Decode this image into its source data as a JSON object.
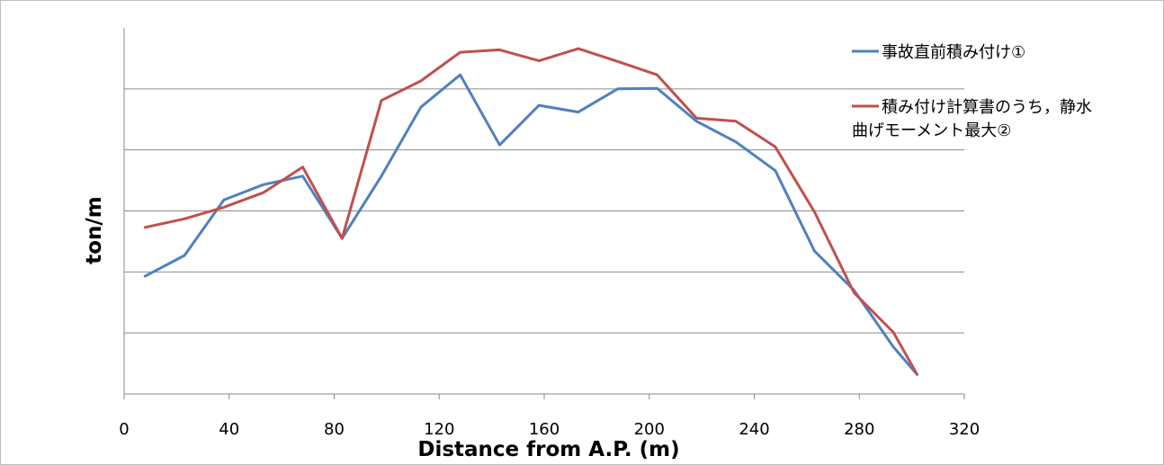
{
  "chart_data": {
    "type": "line",
    "title": "",
    "xlabel": "Distance from A.P. (m)",
    "ylabel": "ton/m",
    "xlim": [
      0,
      320
    ],
    "ylim": [
      0,
      6
    ],
    "x_ticks": [
      0,
      40,
      80,
      120,
      160,
      200,
      240,
      280,
      320
    ],
    "y_ticks": [
      1,
      2,
      3,
      4,
      5
    ],
    "y_tick_labels_shown": false,
    "grid": "horizontal",
    "legend_position": "top-right",
    "series": [
      {
        "name": "事故直前積み付け①",
        "color": "#4F81BD",
        "points": [
          [
            8,
            1.93
          ],
          [
            23,
            2.27
          ],
          [
            38,
            3.18
          ],
          [
            53,
            3.43
          ],
          [
            68,
            3.57
          ],
          [
            83,
            2.55
          ],
          [
            98,
            3.57
          ],
          [
            113,
            4.7
          ],
          [
            128,
            5.23
          ],
          [
            143,
            4.08
          ],
          [
            158,
            4.73
          ],
          [
            173,
            4.62
          ],
          [
            188,
            5.0
          ],
          [
            203,
            5.01
          ],
          [
            218,
            4.47
          ],
          [
            233,
            4.13
          ],
          [
            248,
            3.66
          ],
          [
            263,
            2.34
          ],
          [
            278,
            1.7
          ],
          [
            293,
            0.77
          ],
          [
            302,
            0.32
          ]
        ]
      },
      {
        "name": "積み付け計算書のうち，静水曲げモーメント最大②",
        "color": "#C0504D",
        "points": [
          [
            8,
            2.73
          ],
          [
            23,
            2.87
          ],
          [
            38,
            3.06
          ],
          [
            53,
            3.3
          ],
          [
            68,
            3.72
          ],
          [
            83,
            2.55
          ],
          [
            98,
            4.81
          ],
          [
            113,
            5.13
          ],
          [
            128,
            5.6
          ],
          [
            143,
            5.64
          ],
          [
            158,
            5.46
          ],
          [
            173,
            5.66
          ],
          [
            188,
            5.45
          ],
          [
            203,
            5.23
          ],
          [
            218,
            4.52
          ],
          [
            233,
            4.47
          ],
          [
            248,
            4.05
          ],
          [
            263,
            2.98
          ],
          [
            278,
            1.66
          ],
          [
            293,
            1.01
          ],
          [
            302,
            0.32
          ]
        ]
      }
    ]
  }
}
